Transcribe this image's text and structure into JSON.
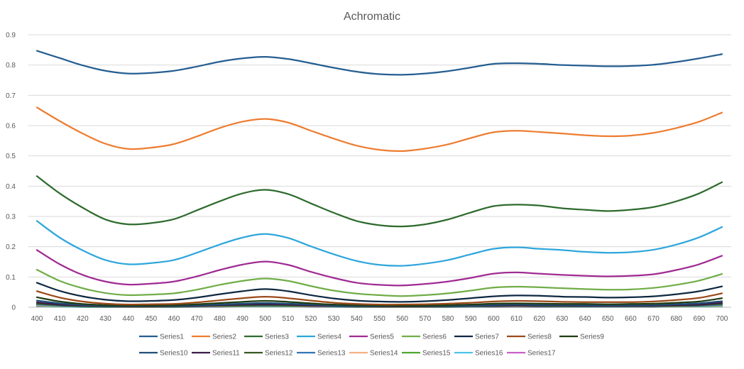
{
  "chart_data": {
    "type": "line",
    "title": "Achromatic",
    "xlabel": "",
    "ylabel": "",
    "x": [
      400,
      410,
      420,
      430,
      440,
      450,
      460,
      470,
      480,
      490,
      500,
      510,
      520,
      530,
      540,
      550,
      560,
      570,
      580,
      590,
      600,
      610,
      620,
      630,
      640,
      650,
      660,
      670,
      680,
      690,
      700
    ],
    "ylim": [
      0,
      0.9
    ],
    "yticks": [
      "0",
      "0.1",
      "0.2",
      "0.3",
      "0.4",
      "0.5",
      "0.6",
      "0.7",
      "0.8",
      "0.9"
    ],
    "grid": true,
    "legend_position": "bottom",
    "series": [
      {
        "name": "Series1",
        "color": "#255e91",
        "values": [
          0.847,
          0.823,
          0.799,
          0.781,
          0.772,
          0.774,
          0.781,
          0.795,
          0.811,
          0.822,
          0.827,
          0.82,
          0.806,
          0.791,
          0.778,
          0.77,
          0.768,
          0.772,
          0.78,
          0.792,
          0.804,
          0.806,
          0.804,
          0.8,
          0.798,
          0.796,
          0.797,
          0.801,
          0.81,
          0.822,
          0.836
        ]
      },
      {
        "name": "Series2",
        "color": "#ed7d31",
        "values": [
          0.66,
          0.615,
          0.574,
          0.54,
          0.523,
          0.527,
          0.539,
          0.564,
          0.592,
          0.613,
          0.622,
          0.61,
          0.583,
          0.557,
          0.534,
          0.52,
          0.516,
          0.524,
          0.538,
          0.559,
          0.578,
          0.583,
          0.579,
          0.574,
          0.568,
          0.565,
          0.567,
          0.576,
          0.592,
          0.613,
          0.643
        ]
      },
      {
        "name": "Series3",
        "color": "#2e6b2e",
        "values": [
          0.433,
          0.376,
          0.329,
          0.29,
          0.274,
          0.278,
          0.291,
          0.32,
          0.35,
          0.376,
          0.388,
          0.374,
          0.343,
          0.312,
          0.285,
          0.271,
          0.267,
          0.274,
          0.29,
          0.313,
          0.334,
          0.339,
          0.336,
          0.327,
          0.322,
          0.318,
          0.322,
          0.331,
          0.35,
          0.376,
          0.413
        ]
      },
      {
        "name": "Series4",
        "color": "#2ea6db",
        "values": [
          0.285,
          0.23,
          0.188,
          0.156,
          0.142,
          0.146,
          0.156,
          0.18,
          0.207,
          0.23,
          0.242,
          0.229,
          0.201,
          0.175,
          0.153,
          0.14,
          0.137,
          0.144,
          0.156,
          0.175,
          0.193,
          0.198,
          0.193,
          0.189,
          0.183,
          0.18,
          0.182,
          0.19,
          0.207,
          0.231,
          0.265
        ]
      },
      {
        "name": "Series5",
        "color": "#a02b93",
        "values": [
          0.189,
          0.142,
          0.107,
          0.085,
          0.075,
          0.078,
          0.085,
          0.102,
          0.123,
          0.141,
          0.151,
          0.14,
          0.117,
          0.097,
          0.081,
          0.074,
          0.072,
          0.077,
          0.085,
          0.097,
          0.111,
          0.115,
          0.111,
          0.107,
          0.104,
          0.102,
          0.104,
          0.109,
          0.123,
          0.142,
          0.17
        ]
      },
      {
        "name": "Series6",
        "color": "#70ad47",
        "values": [
          0.124,
          0.087,
          0.063,
          0.047,
          0.04,
          0.042,
          0.046,
          0.058,
          0.074,
          0.087,
          0.095,
          0.087,
          0.07,
          0.055,
          0.045,
          0.04,
          0.037,
          0.04,
          0.046,
          0.055,
          0.065,
          0.068,
          0.066,
          0.063,
          0.06,
          0.058,
          0.059,
          0.064,
          0.074,
          0.088,
          0.11
        ]
      },
      {
        "name": "Series7",
        "color": "#0e2841",
        "values": [
          0.081,
          0.054,
          0.036,
          0.025,
          0.02,
          0.021,
          0.024,
          0.032,
          0.043,
          0.053,
          0.06,
          0.053,
          0.04,
          0.029,
          0.022,
          0.019,
          0.018,
          0.02,
          0.024,
          0.03,
          0.036,
          0.039,
          0.038,
          0.035,
          0.034,
          0.032,
          0.033,
          0.036,
          0.043,
          0.053,
          0.069
        ]
      },
      {
        "name": "Series8",
        "color": "#9c4a19",
        "values": [
          0.053,
          0.032,
          0.019,
          0.012,
          0.009,
          0.01,
          0.011,
          0.016,
          0.023,
          0.03,
          0.035,
          0.03,
          0.022,
          0.015,
          0.011,
          0.009,
          0.009,
          0.01,
          0.012,
          0.015,
          0.019,
          0.021,
          0.02,
          0.018,
          0.017,
          0.017,
          0.017,
          0.019,
          0.024,
          0.031,
          0.046
        ]
      },
      {
        "name": "Series9",
        "color": "#1f3d12",
        "values": [
          0.033,
          0.019,
          0.011,
          0.007,
          0.006,
          0.006,
          0.007,
          0.01,
          0.014,
          0.018,
          0.021,
          0.018,
          0.013,
          0.009,
          0.007,
          0.006,
          0.005,
          0.006,
          0.007,
          0.009,
          0.012,
          0.013,
          0.012,
          0.011,
          0.011,
          0.01,
          0.011,
          0.012,
          0.015,
          0.019,
          0.03
        ]
      },
      {
        "name": "Series10",
        "color": "#1f4e79",
        "values": [
          0.022,
          0.013,
          0.008,
          0.005,
          0.004,
          0.004,
          0.005,
          0.007,
          0.009,
          0.012,
          0.014,
          0.012,
          0.009,
          0.006,
          0.005,
          0.004,
          0.004,
          0.004,
          0.005,
          0.006,
          0.008,
          0.009,
          0.008,
          0.008,
          0.007,
          0.007,
          0.007,
          0.008,
          0.01,
          0.013,
          0.02
        ]
      },
      {
        "name": "Series11",
        "color": "#3c1b47",
        "values": [
          0.016,
          0.009,
          0.006,
          0.004,
          0.003,
          0.003,
          0.004,
          0.005,
          0.007,
          0.009,
          0.01,
          0.009,
          0.006,
          0.005,
          0.004,
          0.003,
          0.003,
          0.003,
          0.004,
          0.005,
          0.006,
          0.006,
          0.006,
          0.006,
          0.005,
          0.005,
          0.005,
          0.006,
          0.007,
          0.009,
          0.015
        ]
      },
      {
        "name": "Series12",
        "color": "#385723",
        "values": [
          0.012,
          0.007,
          0.004,
          0.003,
          0.002,
          0.002,
          0.003,
          0.004,
          0.005,
          0.006,
          0.007,
          0.006,
          0.005,
          0.004,
          0.003,
          0.002,
          0.002,
          0.002,
          0.003,
          0.004,
          0.004,
          0.005,
          0.004,
          0.004,
          0.004,
          0.004,
          0.004,
          0.004,
          0.005,
          0.007,
          0.011
        ]
      },
      {
        "name": "Series13",
        "color": "#2f75b5",
        "values": [
          0.009,
          0.005,
          0.003,
          0.002,
          0.002,
          0.002,
          0.002,
          0.003,
          0.004,
          0.005,
          0.005,
          0.005,
          0.004,
          0.003,
          0.002,
          0.002,
          0.002,
          0.002,
          0.002,
          0.003,
          0.003,
          0.004,
          0.003,
          0.003,
          0.003,
          0.003,
          0.003,
          0.003,
          0.004,
          0.005,
          0.008
        ]
      },
      {
        "name": "Series14",
        "color": "#f4b183",
        "values": [
          0.007,
          0.004,
          0.003,
          0.002,
          0.001,
          0.001,
          0.002,
          0.002,
          0.003,
          0.004,
          0.004,
          0.004,
          0.003,
          0.002,
          0.002,
          0.001,
          0.001,
          0.001,
          0.002,
          0.002,
          0.003,
          0.003,
          0.003,
          0.002,
          0.002,
          0.002,
          0.002,
          0.003,
          0.003,
          0.004,
          0.006
        ]
      },
      {
        "name": "Series15",
        "color": "#4ea72e",
        "values": [
          0.005,
          0.003,
          0.002,
          0.001,
          0.001,
          0.001,
          0.001,
          0.002,
          0.002,
          0.003,
          0.003,
          0.003,
          0.002,
          0.002,
          0.001,
          0.001,
          0.001,
          0.001,
          0.001,
          0.002,
          0.002,
          0.002,
          0.002,
          0.002,
          0.002,
          0.002,
          0.002,
          0.002,
          0.002,
          0.003,
          0.004
        ]
      },
      {
        "name": "Series16",
        "color": "#4dc3e8",
        "values": [
          0.004,
          0.002,
          0.001,
          0.001,
          0.001,
          0.001,
          0.001,
          0.001,
          0.002,
          0.002,
          0.002,
          0.002,
          0.002,
          0.001,
          0.001,
          0.001,
          0.001,
          0.001,
          0.001,
          0.001,
          0.002,
          0.002,
          0.002,
          0.001,
          0.001,
          0.001,
          0.001,
          0.002,
          0.002,
          0.002,
          0.003
        ]
      },
      {
        "name": "Series17",
        "color": "#c85fc8",
        "values": [
          0.003,
          0.002,
          0.001,
          0.001,
          0.001,
          0.001,
          0.001,
          0.001,
          0.001,
          0.002,
          0.002,
          0.002,
          0.001,
          0.001,
          0.001,
          0.001,
          0.001,
          0.001,
          0.001,
          0.001,
          0.001,
          0.001,
          0.001,
          0.001,
          0.001,
          0.001,
          0.001,
          0.001,
          0.002,
          0.002,
          0.003
        ]
      }
    ]
  }
}
